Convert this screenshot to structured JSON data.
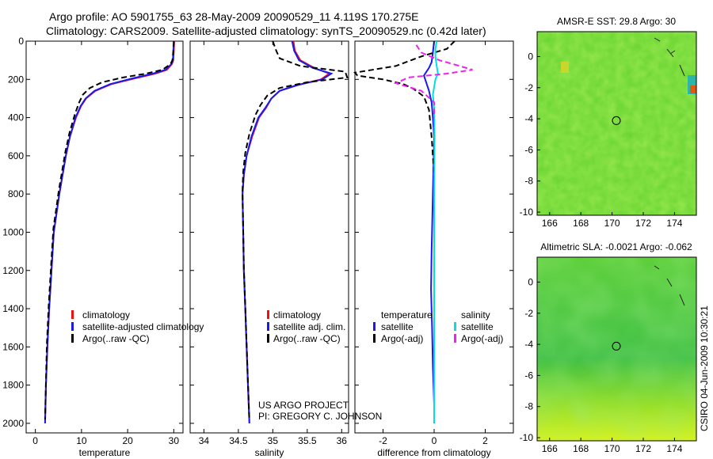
{
  "header": {
    "line1": "Argo profile: AO 5901755_63 28-May-2009 20090529_11  4.119S 170.275E",
    "line2": "Climatology: CARS2009. Satellite-adjusted climatology: synTS_20090529.nc (0.42d later)"
  },
  "sidebar_text": "CSIRO 04-Jun-2009 10:30:21",
  "credit": {
    "line1": "US ARGO PROJECT",
    "line2": "PI: GREGORY C. JOHNSON"
  },
  "colors": {
    "climatology": "#ee1111",
    "satellite": "#1a1aee",
    "argo": "#000000",
    "satellite_sal": "#00e0e0",
    "argo_sal": "#ee22ee"
  },
  "chart_data": [
    {
      "type": "line",
      "xlabel": "temperature",
      "xlim": [
        -2,
        32
      ],
      "ylim": [
        0,
        2050
      ],
      "xticks": [
        0,
        10,
        20,
        30
      ],
      "yticks": [
        0,
        200,
        400,
        600,
        800,
        1000,
        1200,
        1400,
        1600,
        1800,
        2000
      ],
      "legend": [
        "climatology",
        "satellite-adjusted climatology",
        "Argo(..raw -QC)"
      ],
      "series": [
        {
          "name": "climatology",
          "color": "#ee1111",
          "style": "solid",
          "x": [
            30.1,
            30.0,
            29.9,
            29.6,
            28.5,
            26.0,
            21.5,
            16.5,
            13.0,
            11.0,
            9.9,
            8.8,
            7.5,
            6.6,
            5.9,
            5.2,
            4.6,
            4.0,
            3.5,
            3.0,
            2.6,
            2.3,
            2.1
          ],
          "y": [
            0,
            50,
            100,
            120,
            150,
            170,
            195,
            225,
            260,
            300,
            340,
            400,
            500,
            600,
            700,
            800,
            900,
            1000,
            1200,
            1400,
            1600,
            1800,
            2000
          ]
        },
        {
          "name": "satellite-adjusted climatology",
          "color": "#1a1aee",
          "style": "solid",
          "x": [
            30.0,
            29.9,
            29.8,
            29.5,
            28.2,
            25.5,
            21.0,
            16.2,
            12.8,
            10.9,
            9.8,
            8.7,
            7.5,
            6.6,
            5.9,
            5.2,
            4.6,
            4.0,
            3.5,
            3.0,
            2.6,
            2.3,
            2.1
          ],
          "y": [
            0,
            50,
            100,
            120,
            150,
            170,
            195,
            225,
            260,
            300,
            340,
            400,
            500,
            600,
            700,
            800,
            900,
            1000,
            1200,
            1400,
            1600,
            1800,
            2000
          ]
        },
        {
          "name": "Argo(..raw -QC)",
          "color": "#000000",
          "style": "dashed",
          "x": [
            30.0,
            29.9,
            29.7,
            29.3,
            27.5,
            24.0,
            19.0,
            14.5,
            11.8,
            10.3,
            9.5,
            8.6,
            7.4,
            6.5,
            5.8,
            5.1,
            4.5,
            3.9,
            3.4,
            2.9,
            2.5,
            2.3,
            2.1
          ],
          "y": [
            0,
            50,
            100,
            120,
            150,
            170,
            190,
            215,
            245,
            280,
            320,
            380,
            480,
            580,
            680,
            780,
            880,
            980,
            1180,
            1380,
            1580,
            1780,
            1980
          ]
        }
      ]
    },
    {
      "type": "line",
      "xlabel": "salinity",
      "xlim": [
        33.8,
        36.1
      ],
      "ylim": [
        0,
        2050
      ],
      "xticks": [
        34,
        34.5,
        35,
        35.5,
        36
      ],
      "legend": [
        "climatology",
        "satellite adj. clim.",
        "Argo(..raw -QC)"
      ],
      "series": [
        {
          "name": "climatology",
          "color": "#ee1111",
          "style": "solid",
          "x": [
            35.3,
            35.32,
            35.4,
            35.6,
            35.82,
            35.7,
            35.35,
            35.1,
            34.98,
            34.9,
            34.8,
            34.7,
            34.62,
            34.58,
            34.56,
            34.57,
            34.58,
            34.6,
            34.62,
            34.64,
            34.66
          ],
          "y": [
            0,
            50,
            100,
            140,
            170,
            200,
            230,
            260,
            300,
            350,
            400,
            500,
            600,
            700,
            800,
            1000,
            1200,
            1400,
            1600,
            1800,
            2000
          ]
        },
        {
          "name": "satellite adj. clim.",
          "color": "#1a1aee",
          "style": "solid",
          "x": [
            35.28,
            35.31,
            35.38,
            35.58,
            35.85,
            35.72,
            35.36,
            35.1,
            34.98,
            34.89,
            34.79,
            34.69,
            34.62,
            34.58,
            34.56,
            34.57,
            34.58,
            34.6,
            34.62,
            34.64,
            34.66
          ],
          "y": [
            0,
            50,
            100,
            140,
            170,
            200,
            230,
            260,
            300,
            350,
            400,
            500,
            600,
            700,
            800,
            1000,
            1200,
            1400,
            1600,
            1800,
            2000
          ]
        },
        {
          "name": "Argo(..raw -QC)",
          "color": "#000000",
          "style": "dashed",
          "x": [
            35.0,
            35.05,
            35.1,
            35.4,
            36.05,
            36.08,
            35.5,
            35.1,
            34.92,
            34.82,
            34.75,
            34.66,
            34.6,
            34.57,
            34.56,
            34.57,
            34.58,
            34.6,
            34.62,
            34.64,
            34.66
          ],
          "y": [
            0,
            50,
            90,
            130,
            160,
            190,
            215,
            245,
            285,
            335,
            385,
            485,
            585,
            685,
            785,
            985,
            1185,
            1385,
            1585,
            1785,
            1985
          ]
        }
      ]
    },
    {
      "type": "line",
      "xlabel": "difference from climatology",
      "xlim": [
        -3.1,
        3.1
      ],
      "ylim": [
        0,
        2050
      ],
      "xticks": [
        -2,
        0,
        2
      ],
      "legend_left": [
        "temperature",
        "satellite",
        "Argo(-adj)"
      ],
      "legend_right": [
        "salinity",
        "satellite",
        "Argo(-adj)"
      ],
      "series": [
        {
          "name": "temperature satellite",
          "color": "#1a1aee",
          "style": "solid",
          "x": [
            0.0,
            -0.05,
            -0.1,
            -0.2,
            -0.3,
            -0.4,
            -0.3,
            -0.2,
            -0.1,
            -0.05,
            0.0,
            -0.05,
            -0.1,
            -0.12,
            -0.08,
            -0.05,
            0.0,
            0.0
          ],
          "y": [
            0,
            60,
            110,
            140,
            160,
            180,
            220,
            260,
            320,
            400,
            500,
            800,
            1100,
            1300,
            1500,
            1700,
            1900,
            2000
          ]
        },
        {
          "name": "temperature Argo(-adj)",
          "color": "#000000",
          "style": "dashed",
          "x": [
            0.8,
            0.5,
            -0.5,
            -1.5,
            -3.1,
            -3.0,
            -2.0,
            -1.2,
            -0.8,
            -0.4,
            -0.2,
            -0.1,
            0.0,
            0.0,
            0.0,
            0.0,
            0.0
          ],
          "y": [
            0,
            40,
            80,
            130,
            165,
            180,
            200,
            225,
            250,
            290,
            360,
            500,
            700,
            1000,
            1400,
            1800,
            2000
          ]
        },
        {
          "name": "salinity satellite",
          "color": "#00e0e0",
          "style": "solid",
          "x": [
            0.1,
            0.05,
            0.05,
            0.1,
            0.15,
            0.05,
            0.0,
            -0.05,
            0.0,
            0.02,
            0.0,
            0.0,
            0.0,
            0.0
          ],
          "y": [
            0,
            40,
            80,
            130,
            170,
            200,
            240,
            280,
            350,
            500,
            800,
            1200,
            1600,
            2000
          ]
        },
        {
          "name": "salinity Argo(-adj)",
          "color": "#ee22ee",
          "style": "dashed",
          "x": [
            -0.7,
            -0.5,
            0.2,
            1.0,
            1.5,
            0.5,
            -1.0,
            -1.5,
            -0.5,
            0.0,
            0.0
          ],
          "y": [
            20,
            60,
            100,
            130,
            150,
            170,
            190,
            220,
            260,
            320,
            400
          ]
        }
      ]
    },
    {
      "type": "heatmap",
      "title": "AMSR-E SST: 29.8 Argo: 30",
      "xticks": [
        166,
        168,
        170,
        172,
        174
      ],
      "yticks": [
        0,
        -2,
        -4,
        -6,
        -8,
        -10
      ],
      "xlim": [
        165.2,
        175.4
      ],
      "ylim": [
        -10.2,
        1.6
      ],
      "profile_marker": [
        170.275,
        -4.119
      ]
    },
    {
      "type": "heatmap",
      "title": "Altimetric SLA: -0.0021  Argo: -0.062",
      "xticks": [
        166,
        168,
        170,
        172,
        174
      ],
      "yticks": [
        0,
        -2,
        -4,
        -6,
        -8,
        -10
      ],
      "xlim": [
        165.2,
        175.4
      ],
      "ylim": [
        -10.2,
        1.6
      ],
      "profile_marker": [
        170.275,
        -4.119
      ]
    }
  ]
}
